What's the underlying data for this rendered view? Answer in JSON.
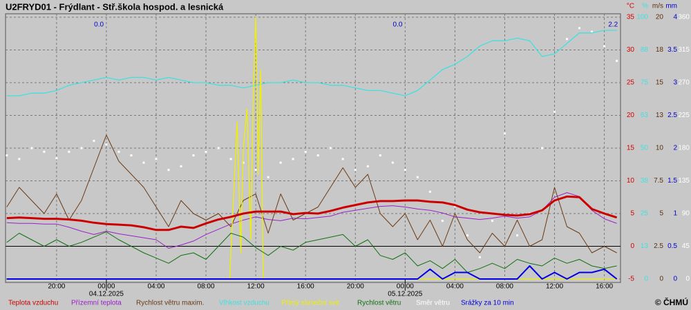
{
  "chart_data": {
    "type": "line",
    "title": "U2FRYD01 - Frýdlant - Stř.škola hospod. a lesnická",
    "copyright": "© ČHMÚ",
    "xlim": [
      -8.1,
      41.3
    ],
    "xticks": [
      {
        "value": -4,
        "label": "20:00"
      },
      {
        "value": 0,
        "label": "00:00"
      },
      {
        "value": 4,
        "label": "04:00"
      },
      {
        "value": 8,
        "label": "08:00"
      },
      {
        "value": 12,
        "label": "12:00"
      },
      {
        "value": 16,
        "label": "16:00"
      },
      {
        "value": 20,
        "label": "20:00"
      },
      {
        "value": 24,
        "label": "00:00"
      },
      {
        "value": 28,
        "label": "04:00"
      },
      {
        "value": 32,
        "label": "08:00"
      },
      {
        "value": 36,
        "label": "12:00"
      },
      {
        "value": 40,
        "label": "16:00"
      }
    ],
    "dates": [
      {
        "value": 0,
        "label": "04.12.2025"
      },
      {
        "value": 24,
        "label": "05.12.2025"
      }
    ],
    "grid": true,
    "axes": [
      {
        "unit": "°C",
        "color": "#d40000",
        "lim": [
          -5,
          35
        ],
        "ticks": [
          -5,
          0,
          5,
          10,
          15,
          20,
          25,
          30,
          35
        ]
      },
      {
        "unit": "%",
        "color": "#40e0e0",
        "lim": [
          0,
          100
        ],
        "ticks": [
          0,
          {
            "value": 12.5,
            "label": "13"
          },
          25,
          {
            "value": 37.5,
            "label": "38"
          },
          50,
          {
            "value": 62.5,
            "label": "63"
          },
          75,
          {
            "value": 87.5,
            "label": "88"
          },
          100
        ]
      },
      {
        "unit": "m/s",
        "color": "#5a3010",
        "lim": [
          0,
          20
        ],
        "ticks": [
          0,
          2.5,
          5,
          7.5,
          10,
          {
            "value": 12.5,
            "label": "13"
          },
          15,
          {
            "value": 17.5,
            "label": "18"
          },
          20
        ]
      },
      {
        "unit": "mm",
        "color": "#0000cc",
        "lim": [
          0,
          4
        ],
        "ticks": [
          0,
          0.5,
          1,
          1.5,
          2,
          2.5,
          3,
          3.5,
          4
        ]
      },
      {
        "color": "#ffffff",
        "lim": [
          0,
          360
        ],
        "ticks": [
          0,
          45,
          90,
          135,
          180,
          225,
          270,
          315,
          360
        ]
      }
    ],
    "x": [
      -8,
      -7,
      -6,
      -5,
      -4,
      -3,
      -2,
      -1,
      0,
      1,
      2,
      3,
      4,
      5,
      6,
      7,
      8,
      9,
      10,
      11,
      12,
      13,
      14,
      15,
      16,
      17,
      18,
      19,
      20,
      21,
      22,
      23,
      24,
      25,
      26,
      27,
      28,
      29,
      30,
      31,
      32,
      33,
      34,
      35,
      36,
      37,
      38,
      39,
      40,
      41
    ],
    "series": [
      {
        "name": "Teplota vzduchu",
        "color": "#cc0000",
        "axis": 0,
        "type": "line",
        "values": [
          4.3,
          4.4,
          4.3,
          4.2,
          4.2,
          4.1,
          3.9,
          3.6,
          3.4,
          3.3,
          3.2,
          2.9,
          2.5,
          2.5,
          3.0,
          2.8,
          3.5,
          4.1,
          4.5,
          5.0,
          5.3,
          5.3,
          5.3,
          4.9,
          5.1,
          5.0,
          5.4,
          5.9,
          6.3,
          6.7,
          6.9,
          6.9,
          7.0,
          7.0,
          6.8,
          6.7,
          6.3,
          5.6,
          5.2,
          5.0,
          4.8,
          4.7,
          4.9,
          5.5,
          7.0,
          7.6,
          7.5,
          5.7,
          5.0,
          4.4
        ]
      },
      {
        "name": "Přízemní teplota",
        "color": "#9a20c8",
        "axis": 0,
        "type": "line",
        "values": [
          3.6,
          3.5,
          3.5,
          3.4,
          3.4,
          2.9,
          2.3,
          1.8,
          2.3,
          1.9,
          1.6,
          1.3,
          1.0,
          -0.3,
          0.2,
          0.8,
          1.8,
          2.6,
          3.4,
          4.0,
          4.5,
          4.1,
          3.9,
          4.3,
          4.2,
          4.4,
          4.6,
          5.2,
          5.5,
          5.8,
          6.1,
          6.2,
          6.0,
          5.7,
          5.5,
          5.1,
          4.5,
          4.3,
          4.1,
          4.3,
          4.6,
          4.3,
          4.5,
          5.5,
          7.5,
          8.2,
          7.6,
          5.5,
          4.2,
          3.5
        ]
      },
      {
        "name": "Rychlost větru maxim.",
        "color": "#6b3a14",
        "axis": 2,
        "type": "line",
        "values": [
          5.5,
          7.0,
          6.0,
          5.0,
          6.5,
          4.5,
          6.0,
          8.5,
          11.0,
          9.0,
          8.0,
          7.0,
          5.5,
          4.0,
          6.0,
          5.0,
          4.5,
          5.0,
          4.0,
          6.0,
          6.5,
          3.5,
          6.5,
          4.5,
          5.0,
          5.5,
          7.0,
          8.5,
          7.0,
          8.0,
          5.0,
          4.0,
          5.0,
          3.0,
          4.5,
          2.5,
          5.0,
          3.0,
          2.0,
          3.5,
          2.5,
          4.5,
          2.5,
          3.0,
          7.0,
          4.0,
          3.5,
          2.0,
          2.5,
          2.0
        ]
      },
      {
        "name": "Vlhkost vzduchu",
        "color": "#40e0e0",
        "axis": 1,
        "type": "line",
        "values": [
          70,
          70,
          71,
          71,
          72,
          74,
          75,
          76,
          77,
          76,
          77,
          77,
          76,
          77,
          76,
          75,
          75,
          74,
          74,
          73,
          74,
          75,
          75,
          76,
          75,
          75,
          74,
          74,
          73,
          72,
          72,
          71,
          70,
          72,
          76,
          80,
          82,
          85,
          89,
          91,
          91,
          92,
          91,
          85,
          86,
          90,
          94,
          94,
          95,
          95
        ]
      },
      {
        "name": "Přímý sluneční svit",
        "color": "#f0f000",
        "axis": 1,
        "type": "line",
        "x": [
          -8,
          9.9,
          10.2,
          10.5,
          10.8,
          11.0,
          11.3,
          11.6,
          11.8,
          12.0,
          12.2,
          12.4,
          12.6,
          41
        ],
        "values": [
          0,
          0,
          30,
          60,
          10,
          50,
          65,
          15,
          70,
          100,
          40,
          80,
          0,
          0
        ]
      },
      {
        "name": "Rychlost větru",
        "color": "#107010",
        "axis": 2,
        "type": "line",
        "values": [
          2.8,
          3.5,
          3.0,
          2.5,
          3.0,
          2.5,
          2.8,
          3.2,
          3.6,
          3.0,
          2.5,
          2.0,
          1.6,
          1.2,
          1.8,
          2.0,
          1.5,
          2.5,
          3.5,
          3.2,
          2.4,
          1.8,
          2.5,
          2.2,
          2.8,
          3.0,
          3.2,
          3.4,
          2.5,
          3.0,
          1.8,
          1.5,
          2.0,
          1.0,
          1.4,
          0.8,
          1.5,
          0.5,
          0.8,
          1.2,
          0.8,
          1.5,
          1.2,
          1.0,
          1.6,
          1.2,
          1.5,
          1.0,
          0.8,
          1.0
        ]
      },
      {
        "name": "Směr větru",
        "color": "#ffffff",
        "axis": 4,
        "type": "scatter",
        "values": [
          170,
          165,
          180,
          175,
          166,
          175,
          180,
          190,
          185,
          175,
          170,
          160,
          165,
          150,
          155,
          170,
          175,
          180,
          165,
          160,
          150,
          140,
          160,
          165,
          175,
          170,
          180,
          165,
          150,
          155,
          170,
          160,
          150,
          140,
          120,
          80,
          100,
          60,
          30,
          80,
          200,
          60,
          90,
          180,
          230,
          330,
          345,
          340,
          320,
          300
        ]
      },
      {
        "name": "Srážky za 10 min",
        "color": "#0000e0",
        "axis": 3,
        "type": "line",
        "values": [
          0,
          0,
          0,
          0,
          0,
          0,
          0,
          0,
          0,
          0,
          0,
          0,
          0,
          0,
          0,
          0,
          0,
          0,
          0,
          0,
          0,
          0,
          0,
          0,
          0,
          0,
          0,
          0,
          0,
          0,
          0,
          0,
          0,
          0,
          0.15,
          0,
          0.1,
          0.1,
          0,
          0,
          0,
          0,
          0.2,
          0,
          0.1,
          0,
          0.1,
          0.1,
          0.15,
          0
        ]
      }
    ],
    "precip_totals": {
      "x": [
        -0.6,
        23.4,
        40.7
      ],
      "values": [
        0,
        0,
        2.2
      ],
      "value_labels": [
        "0.0",
        "0.0",
        "2.2"
      ]
    }
  }
}
